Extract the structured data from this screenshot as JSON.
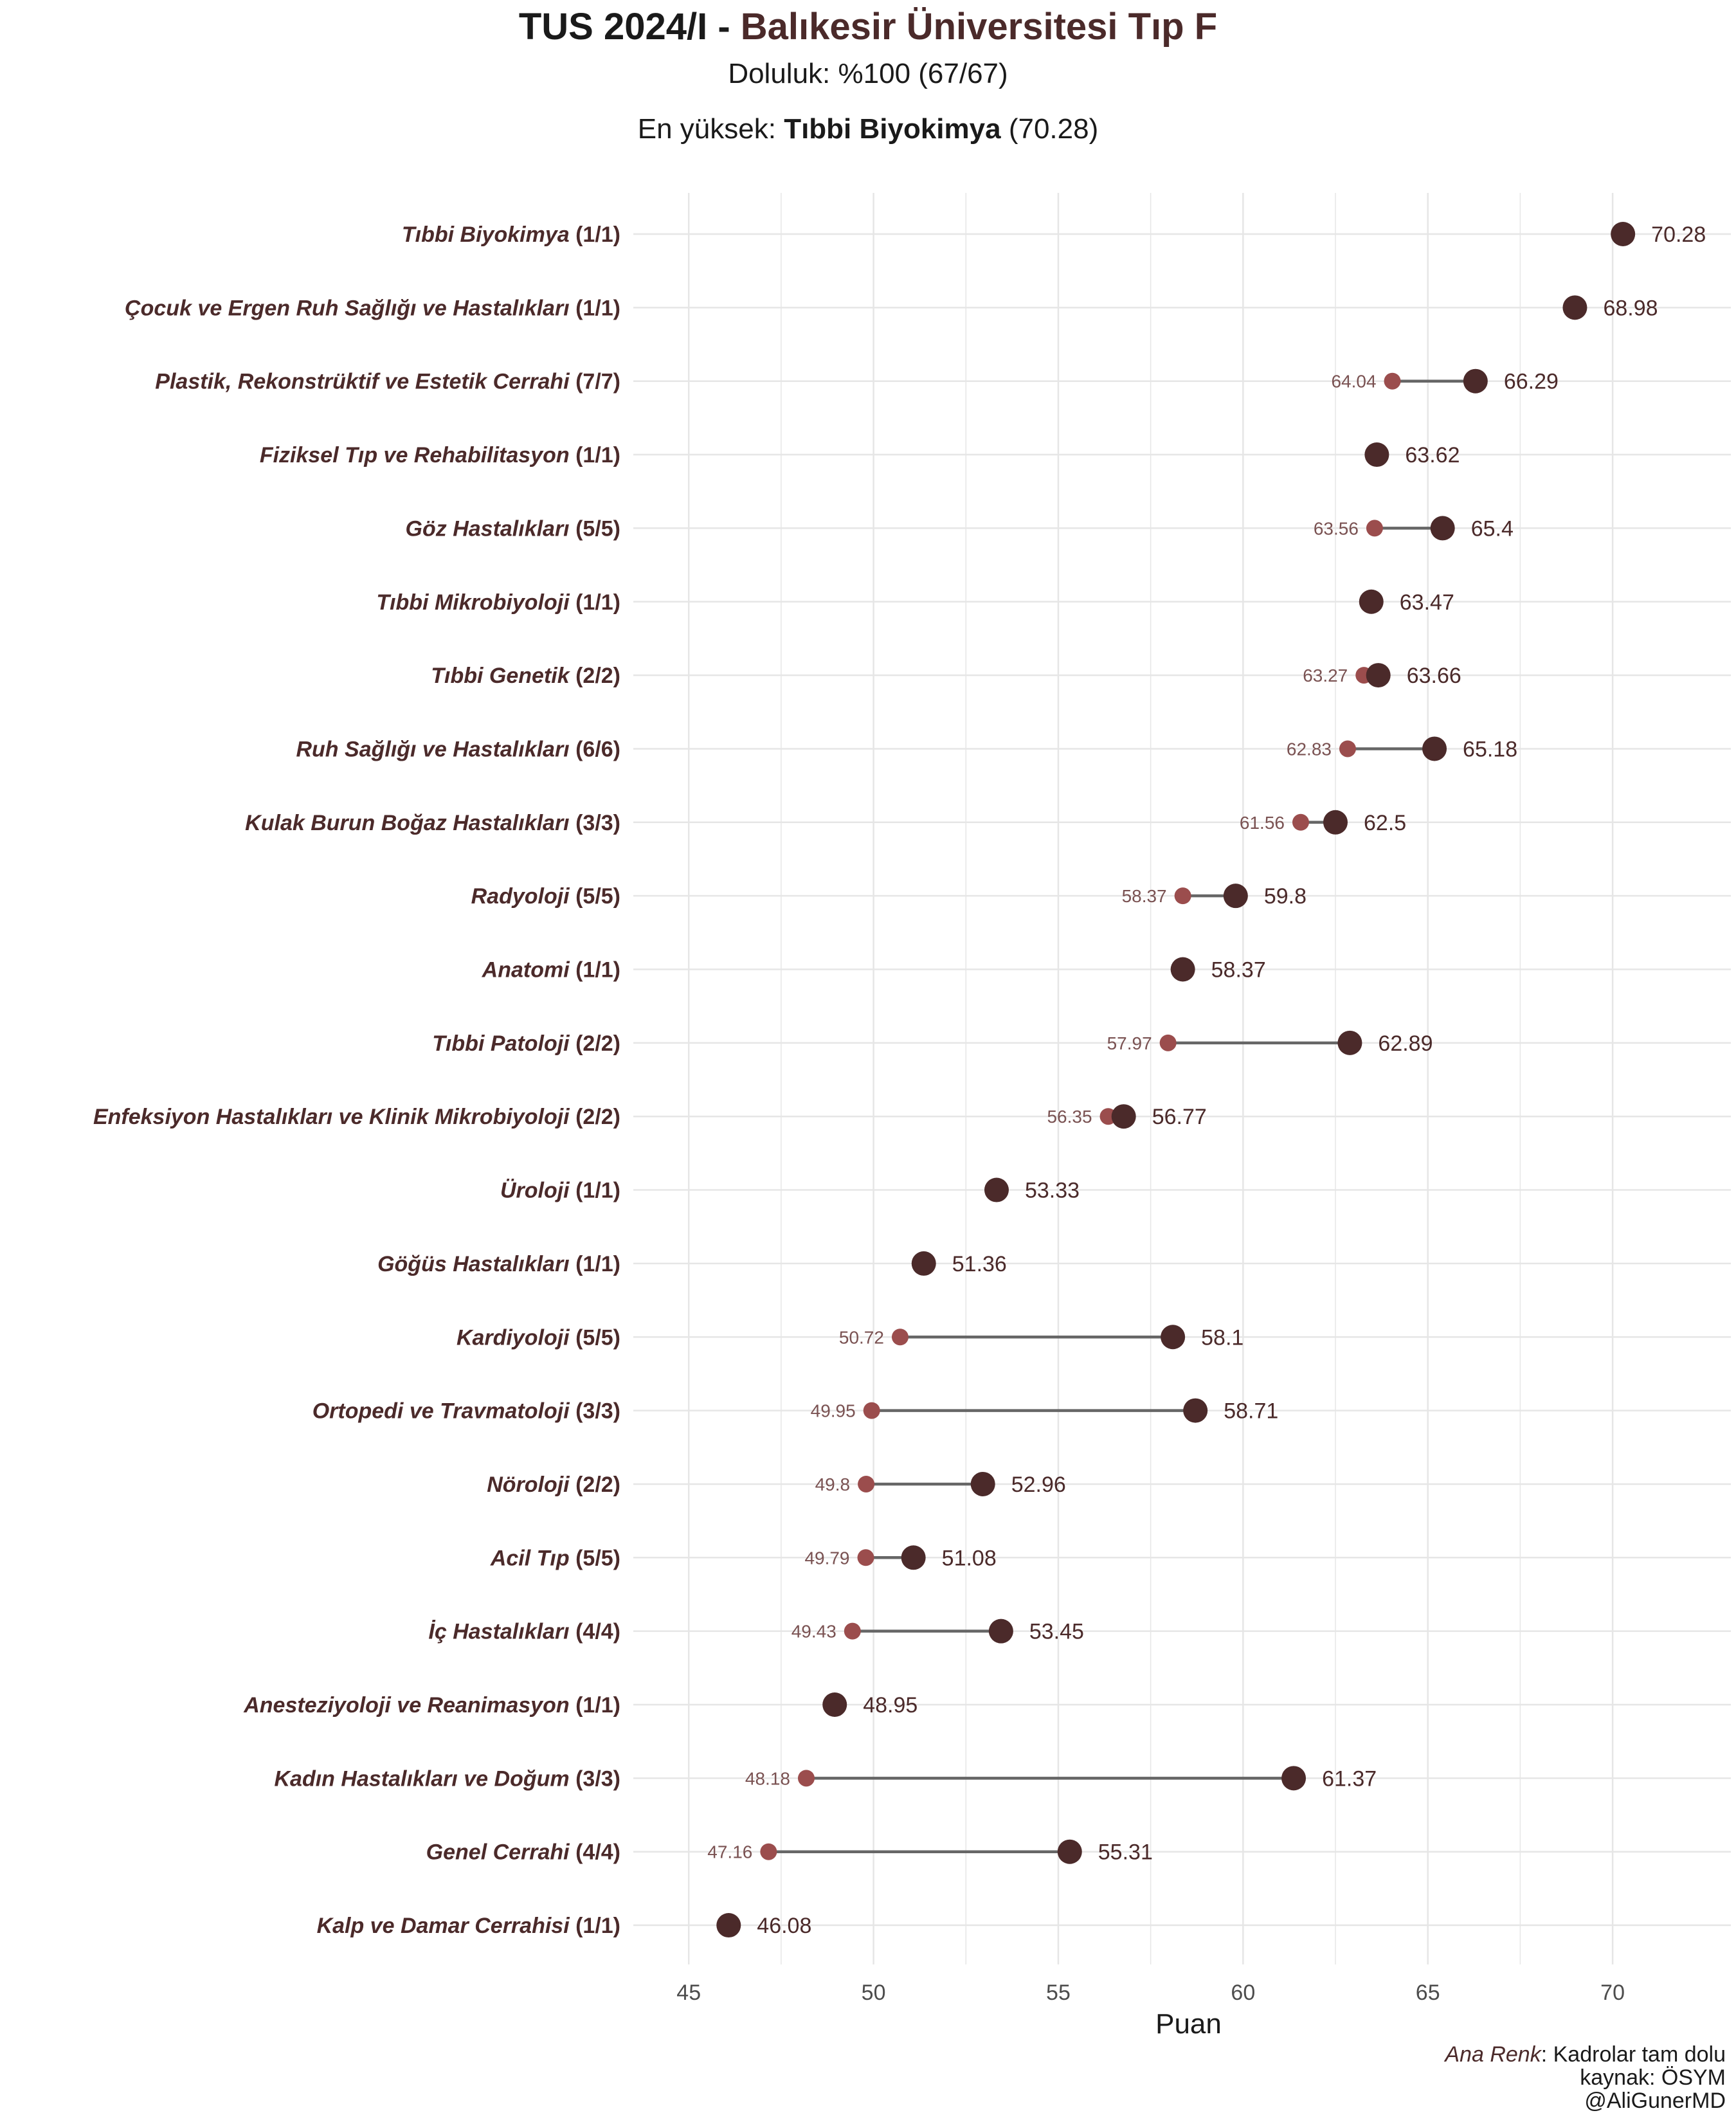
{
  "header": {
    "title_prefix": "TUS 2024/I - ",
    "title_accent": "Balıkesir Üniversitesi Tıp F",
    "subtitle": "Doluluk: %100 (67/67)",
    "top_prefix": "En yüksek: ",
    "top_name": "Tıbbi Biyokimya",
    "top_value": " (70.28)"
  },
  "caption": {
    "ana_renk_label": "Ana Renk",
    "ana_renk_text": ": Kadrolar tam dolu",
    "source": "kaynak: ÖSYM",
    "author": "@AliGunerMD"
  },
  "colors": {
    "max_point": "#4b2a2a",
    "min_point": "#9b4d4d",
    "segment": "#666666",
    "label_text": "#4b2a2a",
    "min_label": "#7a5252",
    "grid": "#e6e6e6"
  },
  "chart_data": {
    "type": "dumbbell",
    "xlabel": "Puan",
    "ylabel": "",
    "xlim": [
      43.5,
      73.2
    ],
    "xticks": [
      45,
      50,
      55,
      60,
      65,
      70
    ],
    "grid": true,
    "rows": [
      {
        "name": "Tıbbi Biyokimya",
        "quota": "(1/1)",
        "min": null,
        "max": 70.28
      },
      {
        "name": "Çocuk ve Ergen Ruh Sağlığı ve Hastalıkları",
        "quota": "(1/1)",
        "min": null,
        "max": 68.98
      },
      {
        "name": "Plastik, Rekonstrüktif ve Estetik Cerrahi",
        "quota": "(7/7)",
        "min": 64.04,
        "max": 66.29
      },
      {
        "name": "Fiziksel Tıp ve Rehabilitasyon",
        "quota": "(1/1)",
        "min": null,
        "max": 63.62
      },
      {
        "name": "Göz Hastalıkları",
        "quota": "(5/5)",
        "min": 63.56,
        "max": 65.4
      },
      {
        "name": "Tıbbi Mikrobiyoloji",
        "quota": "(1/1)",
        "min": null,
        "max": 63.47
      },
      {
        "name": "Tıbbi Genetik",
        "quota": "(2/2)",
        "min": 63.27,
        "max": 63.66
      },
      {
        "name": "Ruh Sağlığı ve Hastalıkları",
        "quota": "(6/6)",
        "min": 62.83,
        "max": 65.18
      },
      {
        "name": "Kulak Burun Boğaz Hastalıkları",
        "quota": "(3/3)",
        "min": 61.56,
        "max": 62.5
      },
      {
        "name": "Radyoloji",
        "quota": "(5/5)",
        "min": 58.37,
        "max": 59.8
      },
      {
        "name": "Anatomi",
        "quota": "(1/1)",
        "min": null,
        "max": 58.37
      },
      {
        "name": "Tıbbi Patoloji",
        "quota": "(2/2)",
        "min": 57.97,
        "max": 62.89
      },
      {
        "name": "Enfeksiyon Hastalıkları ve Klinik Mikrobiyoloji",
        "quota": "(2/2)",
        "min": 56.35,
        "max": 56.77
      },
      {
        "name": "Üroloji",
        "quota": "(1/1)",
        "min": null,
        "max": 53.33
      },
      {
        "name": "Göğüs Hastalıkları",
        "quota": "(1/1)",
        "min": null,
        "max": 51.36
      },
      {
        "name": "Kardiyoloji",
        "quota": "(5/5)",
        "min": 50.72,
        "max": 58.1
      },
      {
        "name": "Ortopedi ve Travmatoloji",
        "quota": "(3/3)",
        "min": 49.95,
        "max": 58.71
      },
      {
        "name": "Nöroloji",
        "quota": "(2/2)",
        "min": 49.8,
        "max": 52.96
      },
      {
        "name": "Acil Tıp",
        "quota": "(5/5)",
        "min": 49.79,
        "max": 51.08
      },
      {
        "name": "İç Hastalıkları",
        "quota": "(4/4)",
        "min": 49.43,
        "max": 53.45
      },
      {
        "name": "Anesteziyoloji ve Reanimasyon",
        "quota": "(1/1)",
        "min": null,
        "max": 48.95
      },
      {
        "name": "Kadın Hastalıkları ve Doğum",
        "quota": "(3/3)",
        "min": 48.18,
        "max": 61.37
      },
      {
        "name": "Genel Cerrahi",
        "quota": "(4/4)",
        "min": 47.16,
        "max": 55.31
      },
      {
        "name": "Kalp ve Damar Cerrahisi",
        "quota": "(1/1)",
        "min": null,
        "max": 46.08
      }
    ]
  }
}
